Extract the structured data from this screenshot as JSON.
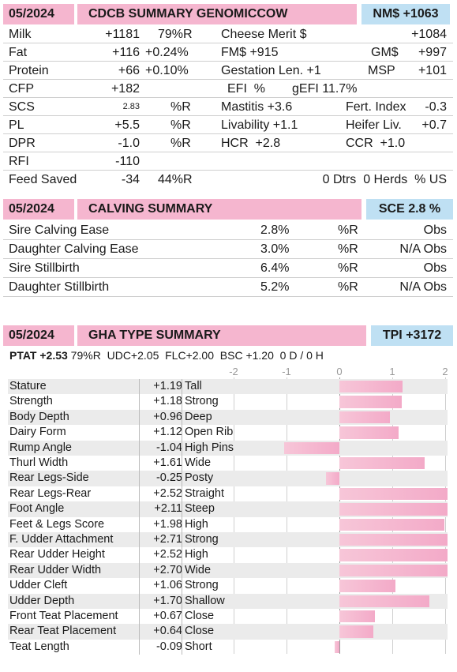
{
  "summary": {
    "date": "05/2024",
    "title": "CDCB SUMMARY GENOMICCOW",
    "badge": "NM$ +1063",
    "rows": [
      {
        "a_label": "Milk",
        "a_val": "+1181",
        "a_rel": "79%R",
        "b_label": "Cheese Merit $",
        "b_val": "+1084"
      },
      {
        "a_label": "Fat",
        "a_val": "+116",
        "a_rel": "+0.24%",
        "b_label": "FM$ +915",
        "c_label": "GM$",
        "c_val": "+997"
      },
      {
        "a_label": "Protein",
        "a_val": "+66",
        "a_rel": "+0.10%",
        "b_label": "Gestation Len. +1",
        "c_label": "MSP",
        "c_val": "+101"
      },
      {
        "a_label": "CFP",
        "a_val": "+182",
        "b_label": "EFI  %",
        "c_label": "gEFI 11.7%"
      },
      {
        "a_label": "SCS",
        "a_val": "2.83",
        "a_rel": "%R",
        "b_label": "Mastitis +3.6",
        "c_label": "Fert. Index",
        "c_val": "-0.3"
      },
      {
        "a_label": "PL",
        "a_val": "+5.5",
        "a_rel": "%R",
        "b_label": "Livability +1.1",
        "c_label": "Heifer Liv.",
        "c_val": "+0.7"
      },
      {
        "a_label": "DPR",
        "a_val": "-1.0",
        "a_rel": "%R",
        "b_label": "HCR  +2.8",
        "c_label": "CCR  +1.0"
      },
      {
        "a_label": "RFI",
        "a_val": "-110"
      },
      {
        "a_label": "Feed Saved",
        "a_val": "-34",
        "a_rel": "44%R",
        "b_val": "0 Dtrs  0 Herds  % US"
      }
    ]
  },
  "calving": {
    "date": "05/2024",
    "title": "CALVING SUMMARY",
    "badge": "SCE 2.8 %",
    "rows": [
      {
        "label": "Sire Calving Ease",
        "value": "2.8%",
        "rel": "%R",
        "obs": "Obs"
      },
      {
        "label": "Daughter Calving Ease",
        "value": "3.0%",
        "rel": "%R",
        "obs": "N/A Obs"
      },
      {
        "label": "Sire Stillbirth",
        "value": "6.4%",
        "rel": "%R",
        "obs": "Obs"
      },
      {
        "label": "Daughter Stillbirth",
        "value": "5.2%",
        "rel": "%R",
        "obs": "N/A Obs"
      }
    ]
  },
  "type": {
    "date": "05/2024",
    "title": "GHA TYPE SUMMARY",
    "badge": "TPI +3172",
    "ptat_label": "PTAT +2.53",
    "ptat_rest": " 79%R  UDC+2.05  FLC+2.00  BSC +1.20  0 D / 0 H",
    "scale": [
      "-2",
      "-1",
      "0",
      "1",
      "2"
    ],
    "rows": [
      {
        "trait": "Stature",
        "value": "+1.19",
        "desc": "Tall"
      },
      {
        "trait": "Strength",
        "value": "+1.18",
        "desc": "Strong"
      },
      {
        "trait": "Body Depth",
        "value": "+0.96",
        "desc": "Deep"
      },
      {
        "trait": "Dairy Form",
        "value": "+1.12",
        "desc": "Open Rib"
      },
      {
        "trait": "Rump Angle",
        "value": "-1.04",
        "desc": "High Pins"
      },
      {
        "trait": "Thurl Width",
        "value": "+1.61",
        "desc": "Wide"
      },
      {
        "trait": "Rear Legs-Side",
        "value": "-0.25",
        "desc": "Posty"
      },
      {
        "trait": "Rear Legs-Rear",
        "value": "+2.52",
        "desc": "Straight"
      },
      {
        "trait": "Foot Angle",
        "value": "+2.11",
        "desc": "Steep"
      },
      {
        "trait": "Feet & Legs Score",
        "value": "+1.98",
        "desc": "High"
      },
      {
        "trait": "F. Udder Attachment",
        "value": "+2.71",
        "desc": "Strong"
      },
      {
        "trait": "Rear Udder Height",
        "value": "+2.52",
        "desc": "High"
      },
      {
        "trait": "Rear Udder Width",
        "value": "+2.70",
        "desc": "Wide"
      },
      {
        "trait": "Udder Cleft",
        "value": "+1.06",
        "desc": "Strong"
      },
      {
        "trait": "Udder Depth",
        "value": "+1.70",
        "desc": "Shallow"
      },
      {
        "trait": "Front Teat Placement",
        "value": "+0.67",
        "desc": "Close"
      },
      {
        "trait": "Rear Teat Placement",
        "value": "+0.64",
        "desc": "Close"
      },
      {
        "trait": "Teat Length",
        "value": "-0.09",
        "desc": "Short"
      }
    ]
  }
}
